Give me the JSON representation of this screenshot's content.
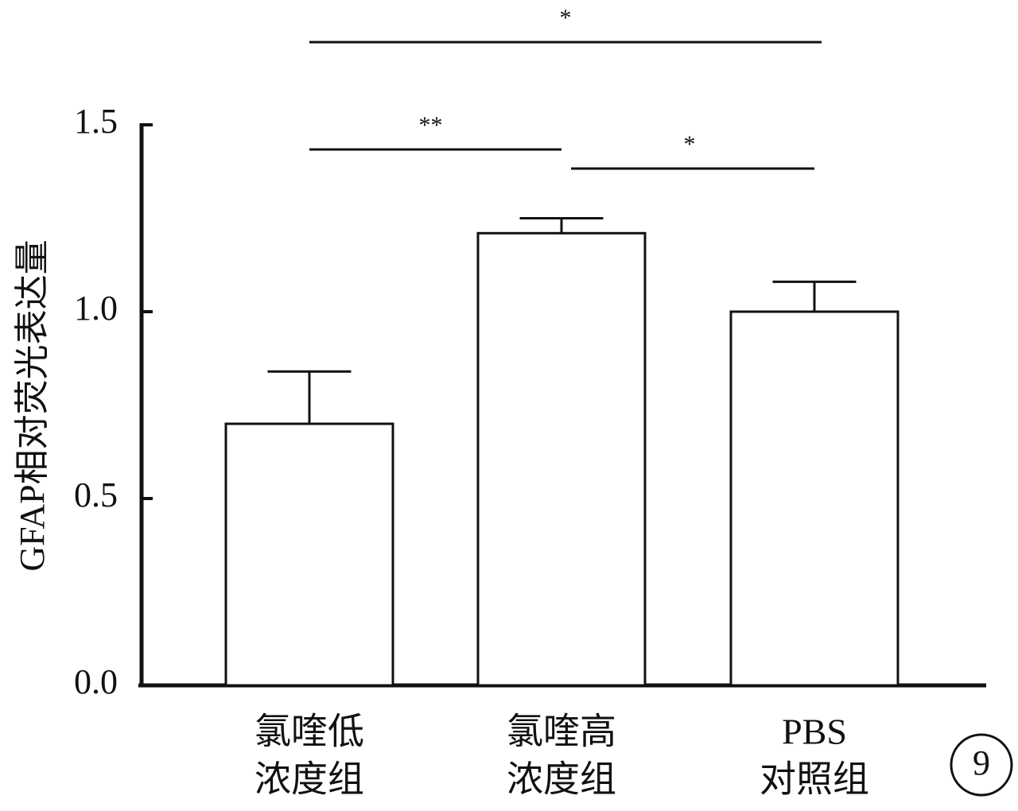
{
  "chart_data": {
    "type": "bar",
    "y_label": "GFAP相对荧光表达量",
    "categories": [
      [
        "氯喹低",
        "浓度组"
      ],
      [
        "氯喹高",
        "浓度组"
      ],
      [
        "PBS",
        "对照组"
      ]
    ],
    "values": [
      0.7,
      1.21,
      1.0
    ],
    "errors": [
      0.14,
      0.04,
      0.08
    ],
    "color": "#ffffff",
    "ylim": [
      0,
      1.5
    ],
    "yticks": [
      {
        "value": 0,
        "label": "0.0"
      },
      0.5,
      {
        "value": 1,
        "label": "1.0"
      },
      1.5
    ],
    "comparisons": [
      {
        "groups": [
          0,
          2
        ],
        "label": "*"
      },
      {
        "groups": [
          0,
          1
        ],
        "label": "**"
      },
      {
        "groups": [
          1,
          2
        ],
        "label": "*"
      }
    ],
    "panel_label": "9"
  }
}
